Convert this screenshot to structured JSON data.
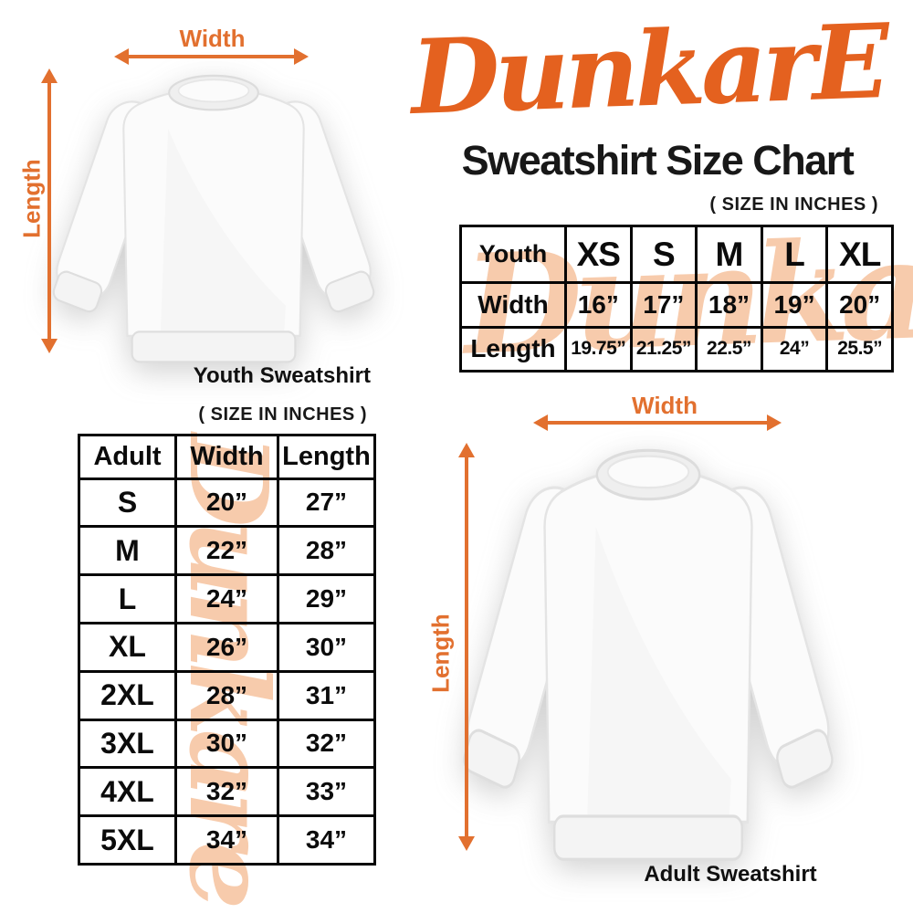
{
  "brand": {
    "logo_text": "DunkarE",
    "title": "Sweatshirt Size Chart"
  },
  "youth_figure": {
    "width_label": "Width",
    "length_label": "Length",
    "caption": "Youth Sweatshirt"
  },
  "adult_figure": {
    "width_label": "Width",
    "length_label": "Length",
    "caption": "Adult Sweatshirt"
  },
  "youth_table": {
    "size_note": "( SIZE IN INCHES )",
    "watermark": "Dunkare",
    "columns": [
      "Youth",
      "XS",
      "S",
      "M",
      "L",
      "XL"
    ],
    "rows": [
      {
        "label": "Width",
        "values": [
          "16”",
          "17”",
          "18”",
          "19”",
          "20”"
        ]
      },
      {
        "label": "Length",
        "values": [
          "19.75”",
          "21.25”",
          "22.5”",
          "24”",
          "25.5”"
        ]
      }
    ]
  },
  "adult_table": {
    "size_note": "( SIZE IN INCHES )",
    "watermark": "Dunkare",
    "columns": [
      "Adult",
      "Width",
      "Length"
    ],
    "rows": [
      {
        "size": "S",
        "width": "20”",
        "length": "27”"
      },
      {
        "size": "M",
        "width": "22”",
        "length": "28”"
      },
      {
        "size": "L",
        "width": "24”",
        "length": "29”"
      },
      {
        "size": "XL",
        "width": "26”",
        "length": "30”"
      },
      {
        "size": "2XL",
        "width": "28”",
        "length": "31”"
      },
      {
        "size": "3XL",
        "width": "30”",
        "length": "32”"
      },
      {
        "size": "4XL",
        "width": "32”",
        "length": "33”"
      },
      {
        "size": "5XL",
        "width": "34”",
        "length": "34”"
      }
    ]
  },
  "colors": {
    "accent_orange": "#E4611F",
    "arrow_orange": "#E2702F",
    "watermark_peach": "#F7CBAC",
    "text_black": "#0d0d0d"
  }
}
